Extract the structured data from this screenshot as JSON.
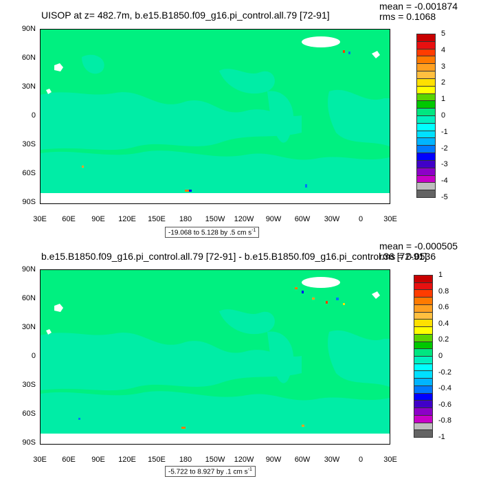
{
  "panels": [
    {
      "title": "UISOP at z= 482.7m, b.e15.B1850.f09_g16.pi_control.all.79 [72-91]",
      "stats": {
        "mean": "mean = -0.001874",
        "rms": "rms = 0.1068"
      },
      "lat_labels": [
        "90N",
        "60N",
        "30N",
        "0",
        "30S",
        "60S",
        "90S"
      ],
      "lon_labels": [
        "30E",
        "60E",
        "90E",
        "120E",
        "150E",
        "180",
        "150W",
        "120W",
        "90W",
        "60W",
        "30W",
        "0",
        "30E"
      ],
      "range_label": "-19.068 to 5.128 by .5 cm s",
      "range_unit_sup": "-1",
      "colorbar": {
        "labels": [
          "5",
          "4",
          "3",
          "2",
          "1",
          "0",
          "-1",
          "-2",
          "-3",
          "-4",
          "-5"
        ],
        "colors": [
          "#c80000",
          "#e81010",
          "#ff3c00",
          "#ff7a00",
          "#ffa020",
          "#ffbf40",
          "#ffe000",
          "#ffff00",
          "#5ad400",
          "#00c800",
          "#00e680",
          "#00f0c0",
          "#00ffff",
          "#00e0ff",
          "#00b4ff",
          "#0078ff",
          "#0000ff",
          "#4000c8",
          "#8c00c8",
          "#c800c8",
          "#bebebe",
          "#646464"
        ]
      }
    },
    {
      "title": "b.e15.B1850.f09_g16.pi_control.all.79 [72-91] - b.e15.B1850.f09_g16.pi_control.36 [72-91]",
      "stats": {
        "mean": "mean = -0.000505",
        "rms": "rms = 0.0536"
      },
      "lat_labels": [
        "90N",
        "60N",
        "30N",
        "0",
        "30S",
        "60S",
        "90S"
      ],
      "lon_labels": [
        "30E",
        "60E",
        "90E",
        "120E",
        "150E",
        "180",
        "150W",
        "120W",
        "90W",
        "60W",
        "30W",
        "0",
        "30E"
      ],
      "range_label": "-5.722 to 8.927 by .1 cm s",
      "range_unit_sup": "-1",
      "colorbar": {
        "labels": [
          "1",
          "0.8",
          "0.6",
          "0.4",
          "0.2",
          "0",
          "-0.2",
          "-0.4",
          "-0.6",
          "-0.8",
          "-1"
        ],
        "colors": [
          "#c80000",
          "#e81010",
          "#ff3c00",
          "#ff7a00",
          "#ffa020",
          "#ffbf40",
          "#ffe000",
          "#ffff00",
          "#5ad400",
          "#00c800",
          "#00e680",
          "#00f0c0",
          "#00ffff",
          "#00e0ff",
          "#00b4ff",
          "#0078ff",
          "#0000ff",
          "#4000c8",
          "#8c00c8",
          "#c800c8",
          "#bebebe",
          "#646464"
        ]
      }
    }
  ],
  "colors": {
    "land_ocean_main": "#00f080",
    "ocean_secondary": "#00eda6",
    "ocean_secondary_cyan": "#00f0d0",
    "land_mask": "#ffffff"
  }
}
